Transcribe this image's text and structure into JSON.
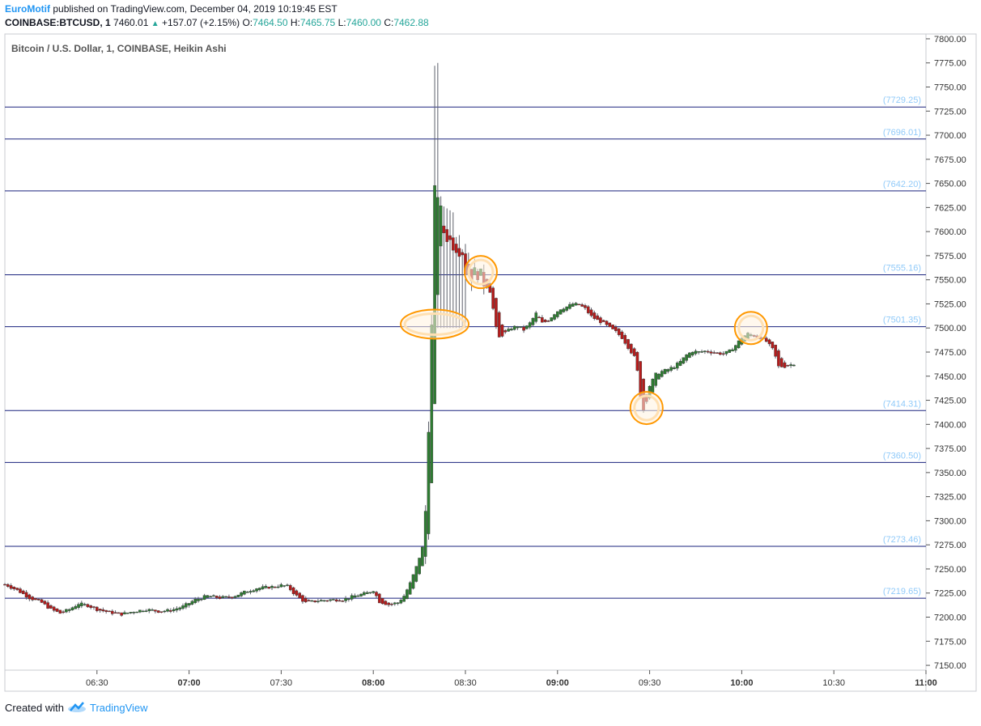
{
  "header": {
    "author": "EuroMotif",
    "published": "published on TradingView.com, December 04, 2019 10:19:45 EST",
    "symbol": "COINBASE:BTCUSD, 1",
    "last": "7460.01",
    "change": "+157.07 (+2.15%)",
    "o_label": "O:",
    "o_val": "7464.50",
    "h_label": "H:",
    "h_val": "7465.75",
    "l_label": "L:",
    "l_val": "7460.00",
    "c_label": "C:",
    "c_val": "7462.88"
  },
  "footer": {
    "created_with": "Created with",
    "brand": "TradingView"
  },
  "colors": {
    "up": "#26a69a",
    "bull_body": "#2e7d32",
    "bear_body": "#b71c1c",
    "level_line": "#1a237e",
    "level_label": "#90caf9",
    "highlight": "#ff9800",
    "brand": "#2196f3"
  },
  "chart_data": {
    "type": "candlestick",
    "title": "Bitcoin / U.S. Dollar, 1, COINBASE, Heikin Ashi",
    "ylim": [
      7145,
      7805
    ],
    "y_ticks": [
      "7150.00",
      "7175.00",
      "7200.00",
      "7225.00",
      "7250.00",
      "7275.00",
      "7300.00",
      "7325.00",
      "7350.00",
      "7375.00",
      "7400.00",
      "7425.00",
      "7450.00",
      "7475.00",
      "7500.00",
      "7525.00",
      "7550.00",
      "7575.00",
      "7600.00",
      "7625.00",
      "7650.00",
      "7675.00",
      "7700.00",
      "7725.00",
      "7750.00",
      "7775.00",
      "7800.00"
    ],
    "x_ticks": [
      {
        "label": "06:30",
        "bold": false,
        "min": 390
      },
      {
        "label": "07:00",
        "bold": true,
        "min": 420
      },
      {
        "label": "07:30",
        "bold": false,
        "min": 450
      },
      {
        "label": "08:00",
        "bold": true,
        "min": 480
      },
      {
        "label": "08:30",
        "bold": false,
        "min": 510
      },
      {
        "label": "09:00",
        "bold": true,
        "min": 540
      },
      {
        "label": "09:30",
        "bold": false,
        "min": 570
      },
      {
        "label": "10:00",
        "bold": true,
        "min": 600
      },
      {
        "label": "10:30",
        "bold": false,
        "min": 630
      },
      {
        "label": "11:00",
        "bold": true,
        "min": 660
      }
    ],
    "xlim_minutes": [
      360,
      660
    ],
    "levels": [
      {
        "value": 7729.25,
        "label": "(7729.25)"
      },
      {
        "value": 7696.01,
        "label": "(7696.01)"
      },
      {
        "value": 7642.2,
        "label": "(7642.20)"
      },
      {
        "value": 7555.16,
        "label": "(7555.16)"
      },
      {
        "value": 7501.35,
        "label": "(7501.35)"
      },
      {
        "value": 7414.31,
        "label": "(7414.31)"
      },
      {
        "value": 7360.5,
        "label": "(7360.50)"
      },
      {
        "value": 7273.46,
        "label": "(7273.46)"
      },
      {
        "value": 7219.65,
        "label": "(7219.65)"
      }
    ],
    "highlights": [
      {
        "time_min": 500,
        "price": 7504,
        "shape": "wide"
      },
      {
        "time_min": 515,
        "price": 7558,
        "shape": "round"
      },
      {
        "time_min": 569,
        "price": 7417,
        "shape": "round"
      },
      {
        "time_min": 603,
        "price": 7500,
        "shape": "round"
      }
    ],
    "price_path": [
      [
        360,
        7234
      ],
      [
        364,
        7228
      ],
      [
        368,
        7220
      ],
      [
        372,
        7215
      ],
      [
        375,
        7208
      ],
      [
        378,
        7204
      ],
      [
        381,
        7208
      ],
      [
        384,
        7214
      ],
      [
        387,
        7212
      ],
      [
        390,
        7208
      ],
      [
        394,
        7205
      ],
      [
        398,
        7203
      ],
      [
        402,
        7206
      ],
      [
        406,
        7208
      ],
      [
        410,
        7206
      ],
      [
        414,
        7207
      ],
      [
        418,
        7211
      ],
      [
        422,
        7218
      ],
      [
        426,
        7222
      ],
      [
        430,
        7220
      ],
      [
        434,
        7221
      ],
      [
        438,
        7226
      ],
      [
        442,
        7230
      ],
      [
        446,
        7231
      ],
      [
        450,
        7233
      ],
      [
        452,
        7232
      ],
      [
        455,
        7222
      ],
      [
        458,
        7215
      ],
      [
        462,
        7217
      ],
      [
        466,
        7218
      ],
      [
        470,
        7218
      ],
      [
        474,
        7222
      ],
      [
        478,
        7225
      ],
      [
        480,
        7228
      ],
      [
        482,
        7216
      ],
      [
        485,
        7213
      ],
      [
        488,
        7215
      ],
      [
        490,
        7222
      ],
      [
        492,
        7235
      ],
      [
        494,
        7252
      ],
      [
        496,
        7272
      ],
      [
        497,
        7310
      ],
      [
        498,
        7400
      ],
      [
        499,
        7500
      ],
      [
        500,
        7640
      ],
      [
        501,
        7640
      ],
      [
        502,
        7620
      ],
      [
        503,
        7600
      ],
      [
        505,
        7590
      ],
      [
        507,
        7585
      ],
      [
        509,
        7580
      ],
      [
        510,
        7560
      ],
      [
        512,
        7555
      ],
      [
        514,
        7558
      ],
      [
        516,
        7548
      ],
      [
        518,
        7538
      ],
      [
        519,
        7520
      ],
      [
        520,
        7500
      ],
      [
        521,
        7490
      ],
      [
        523,
        7495
      ],
      [
        525,
        7500
      ],
      [
        527,
        7502
      ],
      [
        529,
        7498
      ],
      [
        531,
        7505
      ],
      [
        533,
        7515
      ],
      [
        535,
        7505
      ],
      [
        537,
        7508
      ],
      [
        539,
        7515
      ],
      [
        541,
        7520
      ],
      [
        543,
        7522
      ],
      [
        545,
        7525
      ],
      [
        547,
        7524
      ],
      [
        549,
        7520
      ],
      [
        551,
        7512
      ],
      [
        553,
        7508
      ],
      [
        555,
        7505
      ],
      [
        557,
        7500
      ],
      [
        559,
        7496
      ],
      [
        561,
        7490
      ],
      [
        563,
        7480
      ],
      [
        565,
        7470
      ],
      [
        566,
        7455
      ],
      [
        567,
        7430
      ],
      [
        568,
        7415
      ],
      [
        569,
        7425
      ],
      [
        570,
        7440
      ],
      [
        572,
        7452
      ],
      [
        574,
        7455
      ],
      [
        576,
        7457
      ],
      [
        578,
        7460
      ],
      [
        580,
        7465
      ],
      [
        582,
        7472
      ],
      [
        584,
        7476
      ],
      [
        586,
        7475
      ],
      [
        588,
        7476
      ],
      [
        590,
        7475
      ],
      [
        592,
        7474
      ],
      [
        594,
        7473
      ],
      [
        596,
        7476
      ],
      [
        598,
        7482
      ],
      [
        600,
        7490
      ],
      [
        602,
        7494
      ],
      [
        604,
        7492
      ],
      [
        606,
        7490
      ],
      [
        608,
        7486
      ],
      [
        610,
        7478
      ],
      [
        611,
        7470
      ],
      [
        612,
        7460
      ],
      [
        614,
        7460
      ],
      [
        616,
        7462
      ],
      [
        617,
        7463
      ]
    ]
  }
}
